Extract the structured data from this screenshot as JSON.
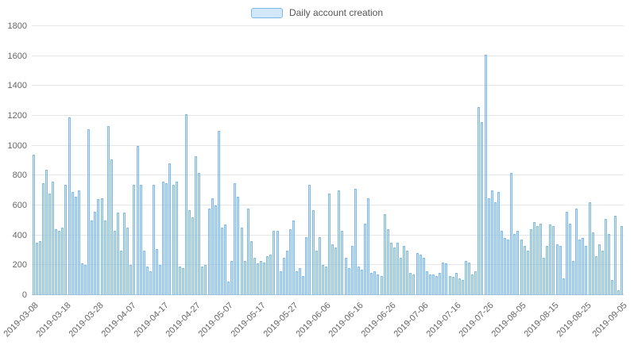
{
  "chart_data": {
    "type": "bar",
    "title": "Daily account creation",
    "legend": [
      "Daily account creation"
    ],
    "legend_position": "top-center",
    "grid": true,
    "ylabel": "",
    "xlabel": "",
    "ylim": [
      0,
      1800
    ],
    "y_ticks": [
      0,
      200,
      400,
      600,
      800,
      1000,
      1200,
      1400,
      1600,
      1800
    ],
    "x_start_date": "2019-03-08",
    "x_end_date": "2019-09-05",
    "x_tick_labels": [
      "2019-03-08",
      "2019-03-18",
      "2019-03-28",
      "2019-04-07",
      "2019-04-17",
      "2019-04-27",
      "2019-05-07",
      "2019-05-17",
      "2019-05-27",
      "2019-06-06",
      "2019-06-16",
      "2019-06-26",
      "2019-07-06",
      "2019-07-16",
      "2019-07-26",
      "2019-08-05",
      "2019-08-15",
      "2019-08-25",
      "2019-09-05"
    ],
    "x_tick_indices": [
      0,
      10,
      20,
      30,
      40,
      50,
      60,
      70,
      80,
      90,
      100,
      110,
      120,
      130,
      140,
      150,
      160,
      170,
      181
    ],
    "values": [
      940,
      350,
      360,
      750,
      840,
      680,
      760,
      440,
      430,
      450,
      740,
      1190,
      690,
      660,
      700,
      210,
      200,
      1110,
      500,
      560,
      640,
      650,
      500,
      1130,
      910,
      430,
      550,
      300,
      550,
      450,
      200,
      740,
      1000,
      740,
      300,
      190,
      160,
      740,
      310,
      200,
      760,
      750,
      880,
      740,
      760,
      190,
      180,
      1210,
      570,
      520,
      930,
      820,
      190,
      200,
      580,
      650,
      600,
      1100,
      450,
      470,
      90,
      230,
      750,
      660,
      450,
      230,
      580,
      360,
      250,
      210,
      230,
      220,
      260,
      270,
      430,
      430,
      160,
      250,
      300,
      440,
      500,
      160,
      180,
      130,
      390,
      740,
      570,
      300,
      390,
      200,
      190,
      680,
      340,
      320,
      700,
      430,
      250,
      180,
      330,
      710,
      190,
      170,
      480,
      650,
      150,
      160,
      140,
      130,
      540,
      440,
      350,
      320,
      350,
      250,
      330,
      300,
      150,
      140,
      280,
      270,
      250,
      160,
      140,
      140,
      130,
      150,
      220,
      210,
      130,
      120,
      150,
      110,
      100,
      230,
      220,
      140,
      160,
      1260,
      1160,
      1610,
      650,
      700,
      620,
      690,
      430,
      380,
      370,
      820,
      410,
      430,
      370,
      330,
      300,
      440,
      490,
      460,
      480,
      250,
      330,
      470,
      460,
      340,
      330,
      110,
      560,
      480,
      230,
      580,
      370,
      380,
      330,
      620,
      420,
      260,
      340,
      300,
      510,
      410,
      100,
      530,
      30,
      460
    ],
    "colors": {
      "bar_fill": "rgba(125,185,232,0.35)",
      "bar_border": "#7db9e8",
      "grid_line": "#e6e6e6",
      "axis_line": "#cccccc",
      "axis_text": "#666666",
      "legend_text": "#555555"
    }
  }
}
